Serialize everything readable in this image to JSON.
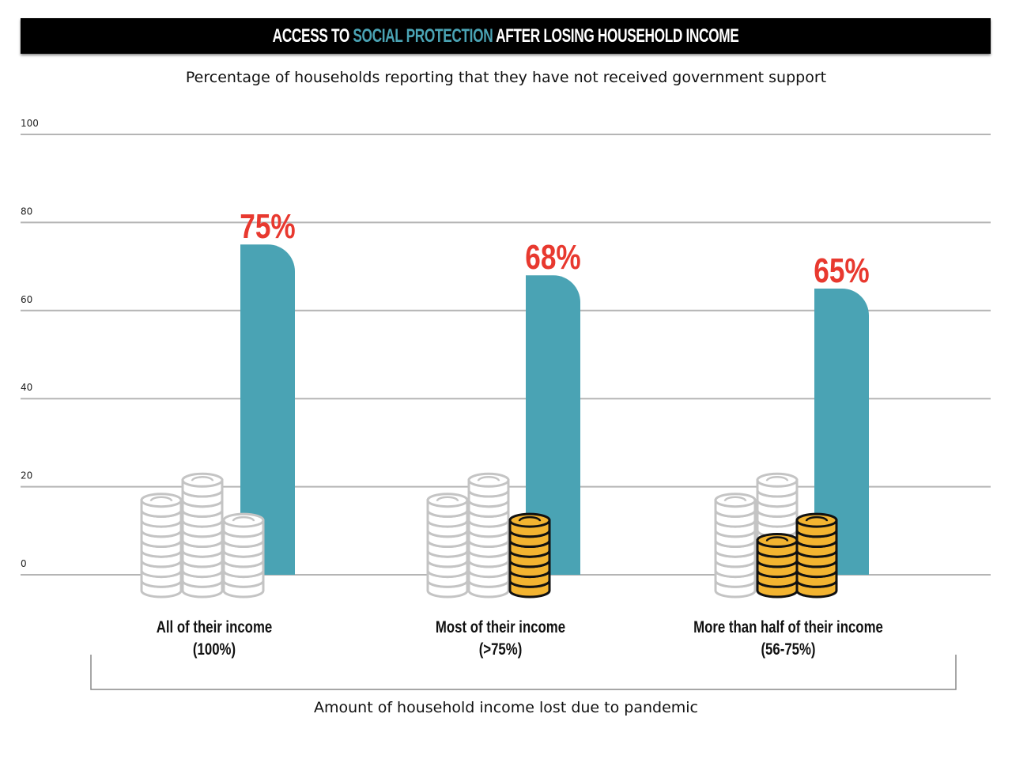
{
  "chart_data": {
    "type": "bar",
    "title_parts": [
      "ACCESS TO ",
      "SOCIAL PROTECTION",
      " AFTER LOSING HOUSEHOLD INCOME"
    ],
    "subtitle": "Percentage of households reporting that they have not received government support",
    "xlabel": "Amount of household income lost due to pandemic",
    "ylabel": "",
    "ylim": [
      0,
      100
    ],
    "yticks": [
      0,
      20,
      40,
      60,
      80,
      100
    ],
    "grid": true,
    "categories": [
      {
        "line1": "All of their income",
        "line2": "(100%)"
      },
      {
        "line1": "Most of their income",
        "line2": "(>75%)"
      },
      {
        "line1": "More than half of their income",
        "line2": "(56-75%)"
      }
    ],
    "values": [
      75,
      68,
      65
    ],
    "value_labels": [
      "75%",
      "68%",
      "65%"
    ],
    "colors": {
      "bar": "#4aa3b4",
      "value_label": "#e8392f",
      "title_highlight": "#4aa3b4",
      "coin_gold": "#f3b431",
      "coin_gray": "#c4c4c4"
    },
    "icons": [
      "coin-stack-icon"
    ]
  }
}
